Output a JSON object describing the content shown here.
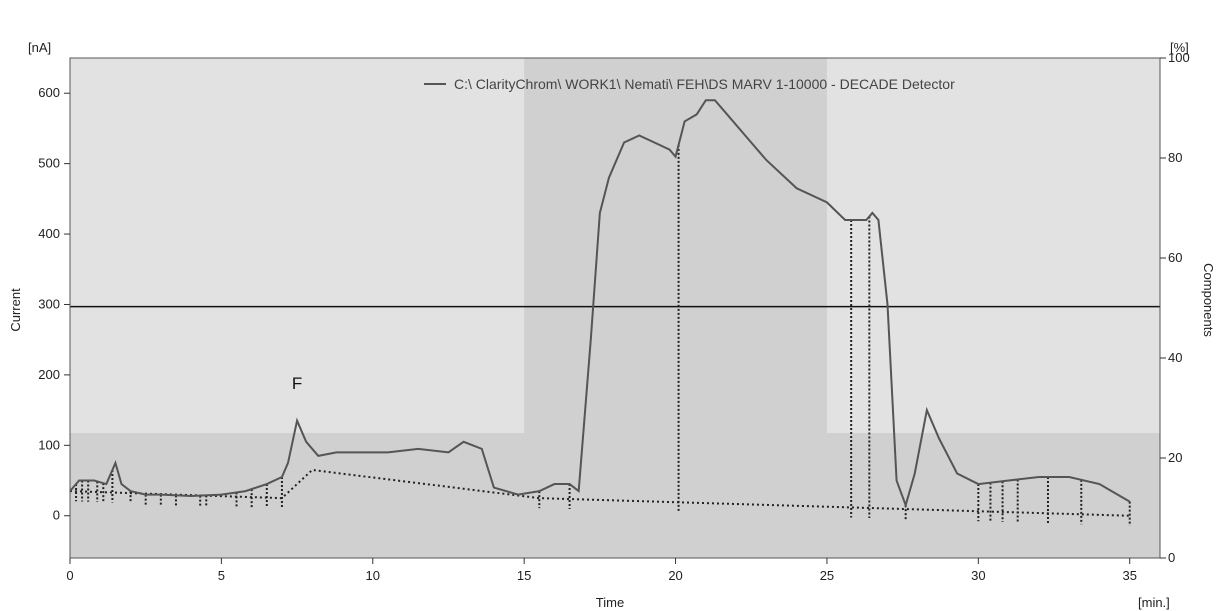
{
  "chart_data": {
    "type": "line",
    "legend": "C:\\ ClarityChrom\\ WORK1\\ Nemati\\ FEH\\DS  MARV 1-10000 - DECADE Detector",
    "legend_placement": "top-right",
    "xlabel": "Time",
    "xunit": "[min.]",
    "ylabel": "Current",
    "yunit": "[nA]",
    "y2label": "Components",
    "y2unit": "[%]",
    "xlim": [
      0,
      36
    ],
    "ylim": [
      -60,
      650
    ],
    "y2lim": [
      0,
      100
    ],
    "x_ticks": [
      "0",
      "5",
      "10",
      "15",
      "20",
      "25",
      "30",
      "35"
    ],
    "y_ticks": [
      "0",
      "100",
      "200",
      "300",
      "400",
      "500",
      "600"
    ],
    "y2_ticks": [
      "0",
      "20",
      "40",
      "60",
      "80",
      "100"
    ],
    "annotation": "F",
    "annotation_at": {
      "x": 7.5,
      "y": 140
    },
    "horizontal_line": 297,
    "gradient_steps": [
      {
        "x": 0,
        "y2": 25
      },
      {
        "x": 15,
        "y2": 25
      },
      {
        "x": 15,
        "y2": 100
      },
      {
        "x": 25,
        "y2": 100
      },
      {
        "x": 25,
        "y2": 25
      },
      {
        "x": 36,
        "y2": 25
      }
    ],
    "series": [
      {
        "x": [
          0,
          0.3,
          0.8,
          1.2,
          1.5,
          1.7,
          2.0,
          2.5,
          3.0,
          4.0,
          5.0,
          5.8,
          6.5,
          7.0,
          7.2,
          7.5,
          7.8,
          8.2,
          8.8,
          9.5,
          10.5,
          11.5,
          12.5,
          13.0,
          13.6,
          14.0,
          14.8,
          15.5,
          16.0,
          16.5,
          16.8,
          17.2,
          17.5,
          17.8,
          18.3,
          18.8,
          19.3,
          19.8,
          20.0,
          20.3,
          20.7,
          21.0,
          21.3,
          21.7,
          22.3,
          23.0,
          24.0,
          25.0,
          25.6,
          26.0,
          26.3,
          26.5,
          26.7,
          27.0,
          27.3,
          27.6,
          27.9,
          28.3,
          28.7,
          29.3,
          30.0,
          31.0,
          32.0,
          33.0,
          34.0,
          34.6,
          35.0
        ],
        "y": [
          35,
          50,
          50,
          45,
          75,
          45,
          35,
          30,
          30,
          28,
          30,
          35,
          45,
          55,
          75,
          135,
          105,
          85,
          90,
          90,
          90,
          95,
          90,
          105,
          95,
          40,
          30,
          35,
          45,
          45,
          35,
          250,
          430,
          480,
          530,
          540,
          530,
          520,
          510,
          560,
          570,
          590,
          590,
          570,
          540,
          505,
          465,
          445,
          420,
          420,
          420,
          430,
          420,
          300,
          50,
          15,
          60,
          150,
          110,
          60,
          45,
          50,
          55,
          55,
          45,
          30,
          20
        ]
      }
    ],
    "baseline_dotted": [
      {
        "x": 0,
        "y": 35
      },
      {
        "x": 7.0,
        "y": 25
      },
      {
        "x": 8.0,
        "y": 65
      },
      {
        "x": 15.5,
        "y": 25
      },
      {
        "x": 35,
        "y": 0
      }
    ],
    "peak_markers_x": [
      0.2,
      0.4,
      0.6,
      0.9,
      1.1,
      1.4,
      2.0,
      2.5,
      3.0,
      3.5,
      4.3,
      4.5,
      5.5,
      6.0,
      6.5,
      7.0,
      15.5,
      16.5,
      20.1,
      25.8,
      26.4,
      27.6,
      30.0,
      30.4,
      30.8,
      31.3,
      32.3,
      33.4,
      35.0
    ]
  }
}
